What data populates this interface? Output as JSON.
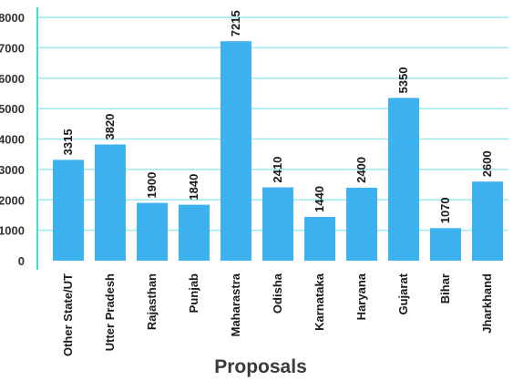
{
  "chart_data": {
    "type": "bar",
    "categories": [
      "Other State/UT",
      "Utter Pradesh",
      "Rajasthan",
      "Punjab",
      "Maharastra",
      "Odisha",
      "Karnataka",
      "Haryana",
      "Gujarat",
      "Bihar",
      "Jharkhand"
    ],
    "values": [
      3315,
      3820,
      1900,
      1840,
      7215,
      2410,
      1440,
      2400,
      5350,
      1070,
      2600
    ],
    "data_labels": [
      "3315",
      "3820",
      "1900",
      "1840",
      "7215",
      "2410",
      "1440",
      "2400",
      "5350",
      "1070",
      "2600"
    ],
    "y_ticks": [
      0,
      1000,
      2000,
      3000,
      4000,
      5000,
      6000,
      7000,
      8000
    ],
    "y_tick_labels": [
      "0",
      "1000",
      "2000",
      "3000",
      "4000",
      "5000",
      "6000",
      "7000",
      "8000"
    ],
    "xlabel": "Proposals",
    "ylabel": "",
    "title": "",
    "ylim": [
      0,
      8000
    ],
    "grid": true,
    "legend": "none",
    "bar_color": "#3db2ee",
    "grid_color": "#9ce9f0",
    "axis_color": "#40e0d0"
  }
}
